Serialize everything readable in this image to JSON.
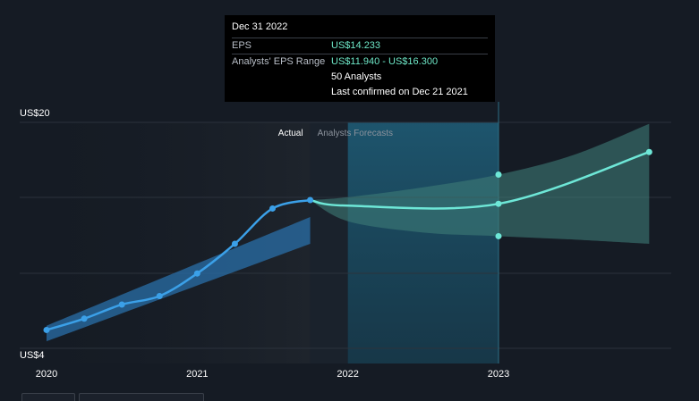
{
  "tooltip": {
    "title": "Dec 31 2022",
    "eps_label": "EPS",
    "eps_value": "US$14.233",
    "range_label": "Analysts' EPS Range",
    "range_low": "US$11.940",
    "range_sep": " - ",
    "range_high": "US$16.300",
    "analysts": "50 Analysts",
    "confirmed": "Last confirmed on Dec 21 2021"
  },
  "regions": {
    "actual_label": "Actual",
    "forecast_label": "Analysts Forecasts"
  },
  "colors": {
    "background": "#151b24",
    "actual_line": "#3ba0e8",
    "forecast_line": "#6ee7d7",
    "actual_band": "#2a6fa8",
    "forecast_band": "#3d7b76",
    "highlight": "#1f5f7a"
  },
  "chart_data": {
    "type": "line",
    "y_tick_labels": [
      "US$20",
      "US$4"
    ],
    "ylim": [
      4,
      20
    ],
    "x_tick_labels": [
      "2020",
      "2021",
      "2022",
      "2023"
    ],
    "x_ticks": [
      2020.0,
      2021.0,
      2022.0,
      2023.0
    ],
    "xlim": [
      2019.93,
      2024.2
    ],
    "grid": true,
    "series": [
      {
        "name": "Actual",
        "x": [
          2020.0,
          2020.25,
          2020.5,
          2020.75,
          2021.0,
          2021.25,
          2021.5,
          2021.75
        ],
        "values": [
          5.3,
          6.1,
          7.1,
          7.7,
          9.3,
          11.4,
          13.9,
          14.5
        ]
      },
      {
        "name": "Analysts Forecasts",
        "x": [
          2021.75,
          2022.0,
          2023.0,
          2024.0
        ],
        "values": [
          14.5,
          14.1,
          14.233,
          17.9
        ]
      }
    ],
    "ranges": [
      {
        "x": [
          2020.0,
          2021.75
        ],
        "low": [
          4.5,
          11.4
        ],
        "high": [
          5.6,
          13.3
        ]
      },
      {
        "x": [
          2021.75,
          2022.0,
          2022.5,
          2023.0,
          2023.5,
          2024.0
        ],
        "low": [
          14.5,
          13.0,
          12.2,
          11.94,
          11.7,
          11.4
        ],
        "high": [
          14.5,
          14.7,
          15.4,
          16.3,
          17.7,
          19.9
        ]
      }
    ],
    "highlight_markers": {
      "x": 2023.0,
      "values": [
        16.3,
        14.233,
        11.94
      ]
    },
    "actual_until": 2021.75,
    "highlight_from": 2022.0,
    "highlight_to": 2023.0
  }
}
